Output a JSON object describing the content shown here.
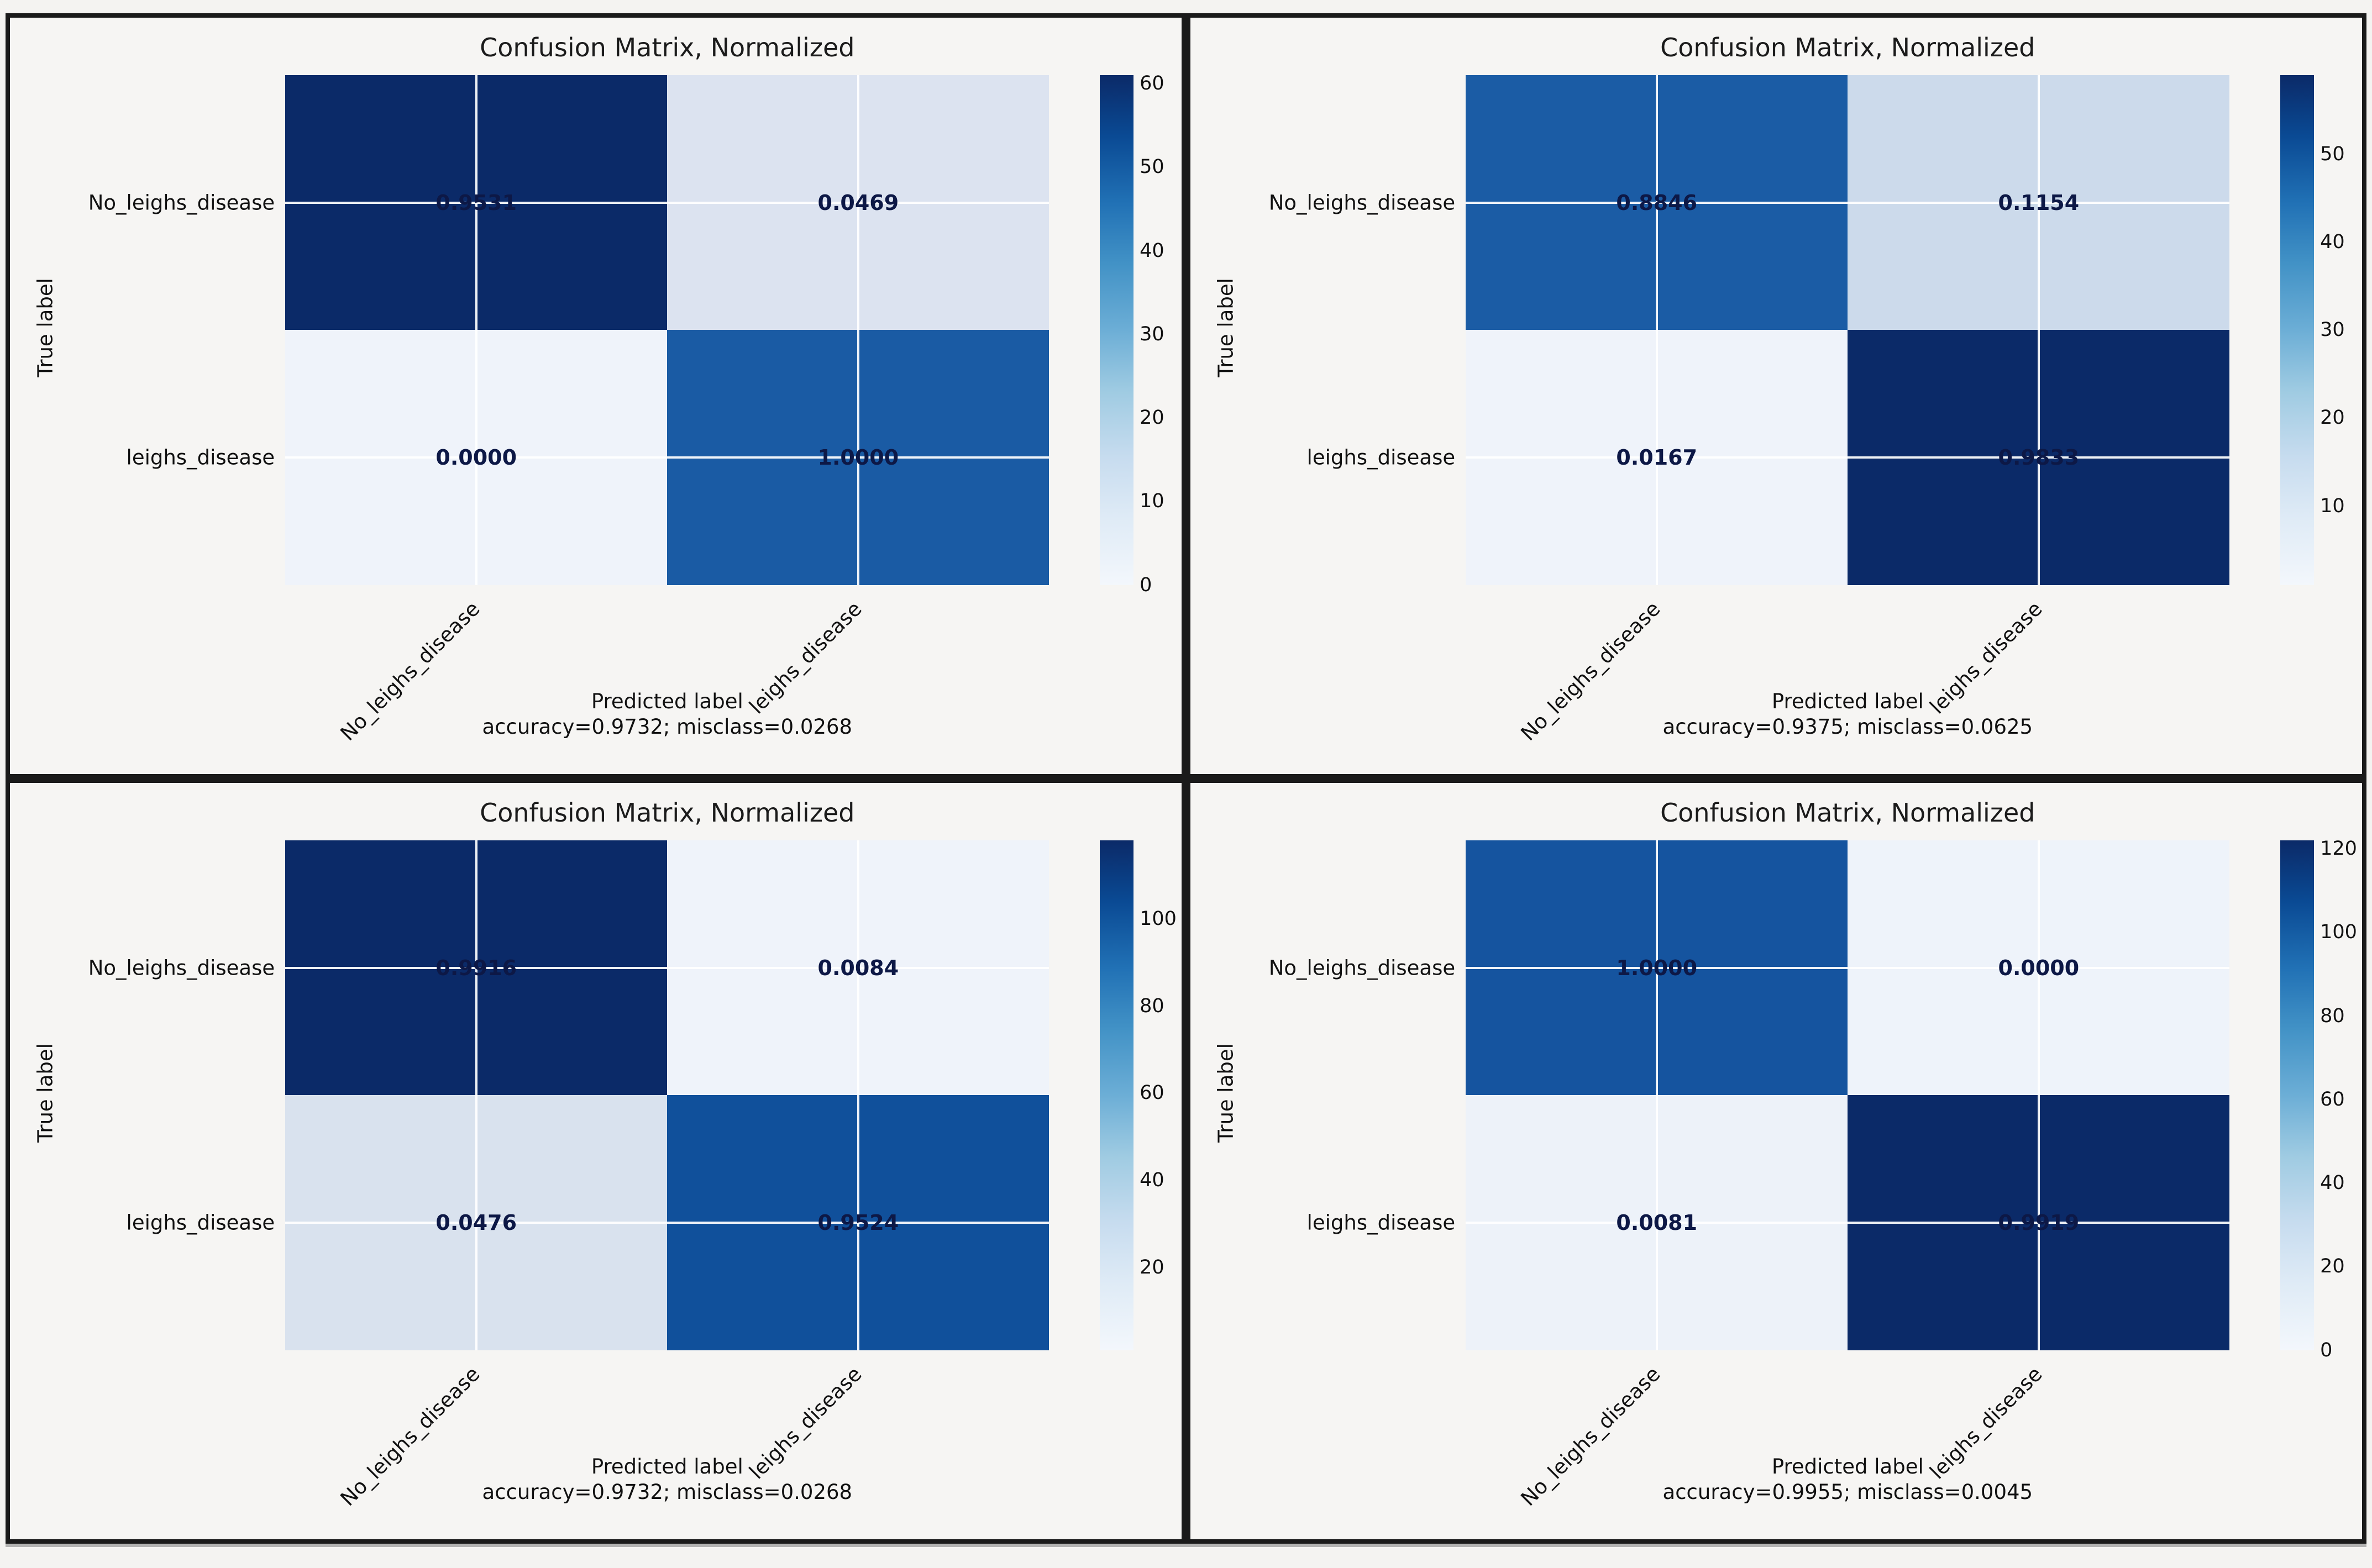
{
  "page": {
    "background": "#f4f3f1",
    "panel_background": "#f6f5f3",
    "panel_border_color": "#1a1a1a",
    "gridline_color": "#ffffff",
    "cell_text_color": "#0d1846",
    "colormap": "Blues"
  },
  "chart_data": [
    {
      "type": "heatmap",
      "position": "top-left",
      "title": "Confusion Matrix, Normalized",
      "xlabel": "Predicted label",
      "ylabel": "True label",
      "classes": [
        "No_leighs_disease",
        "leighs_disease"
      ],
      "rows": [
        [
          "0.9531",
          "0.0469"
        ],
        [
          "0.0000",
          "1.0000"
        ]
      ],
      "accuracy": "0.9732",
      "misclass": "0.0268",
      "footer": "accuracy=0.9732; misclass=0.0268",
      "cell_colors": [
        [
          "#0b2a68",
          "#dce3f0"
        ],
        [
          "#eff3fa",
          "#1a5ba4"
        ]
      ],
      "colorbar": {
        "vmin": 0,
        "vmax": 61,
        "ticks": [
          0,
          10,
          20,
          30,
          40,
          50,
          60
        ]
      }
    },
    {
      "type": "heatmap",
      "position": "top-right",
      "title": "Confusion Matrix, Normalized",
      "xlabel": "Predicted label",
      "ylabel": "True label",
      "classes": [
        "No_leighs_disease",
        "leighs_disease"
      ],
      "rows": [
        [
          "0.8846",
          "0.1154"
        ],
        [
          "0.0167",
          "0.9833"
        ]
      ],
      "accuracy": "0.9375",
      "misclass": "0.0625",
      "footer": "accuracy=0.9375; misclass=0.0625",
      "cell_colors": [
        [
          "#1b5ca5",
          "#ccdaeb"
        ],
        [
          "#eff3fa",
          "#0b2a68"
        ]
      ],
      "colorbar": {
        "vmin": 1,
        "vmax": 59,
        "ticks": [
          10,
          20,
          30,
          40,
          50
        ]
      }
    },
    {
      "type": "heatmap",
      "position": "bottom-left",
      "title": "Confusion Matrix, Normalized",
      "xlabel": "Predicted label",
      "ylabel": "True label",
      "classes": [
        "No_leighs_disease",
        "leighs_disease"
      ],
      "rows": [
        [
          "0.9916",
          "0.0084"
        ],
        [
          "0.0476",
          "0.9524"
        ]
      ],
      "accuracy": "0.9732",
      "misclass": "0.0268",
      "footer": "accuracy=0.9732; misclass=0.0268",
      "cell_colors": [
        [
          "#0b2a68",
          "#eff3fa"
        ],
        [
          "#d9e2ee",
          "#10509b"
        ]
      ],
      "colorbar": {
        "vmin": 1,
        "vmax": 118,
        "ticks": [
          20,
          40,
          60,
          80,
          100
        ]
      }
    },
    {
      "type": "heatmap",
      "position": "bottom-right",
      "title": "Confusion Matrix, Normalized",
      "xlabel": "Predicted label",
      "ylabel": "True label",
      "classes": [
        "No_leighs_disease",
        "leighs_disease"
      ],
      "rows": [
        [
          "1.0000",
          "0.0000"
        ],
        [
          "0.0081",
          "0.9919"
        ]
      ],
      "accuracy": "0.9955",
      "misclass": "0.0045",
      "footer": "accuracy=0.9955; misclass=0.0045",
      "cell_colors": [
        [
          "#15549f",
          "#eef3fa"
        ],
        [
          "#edf2f9",
          "#0b2a68"
        ]
      ],
      "colorbar": {
        "vmin": 0,
        "vmax": 122,
        "ticks": [
          0,
          20,
          40,
          60,
          80,
          100,
          120
        ]
      }
    }
  ]
}
